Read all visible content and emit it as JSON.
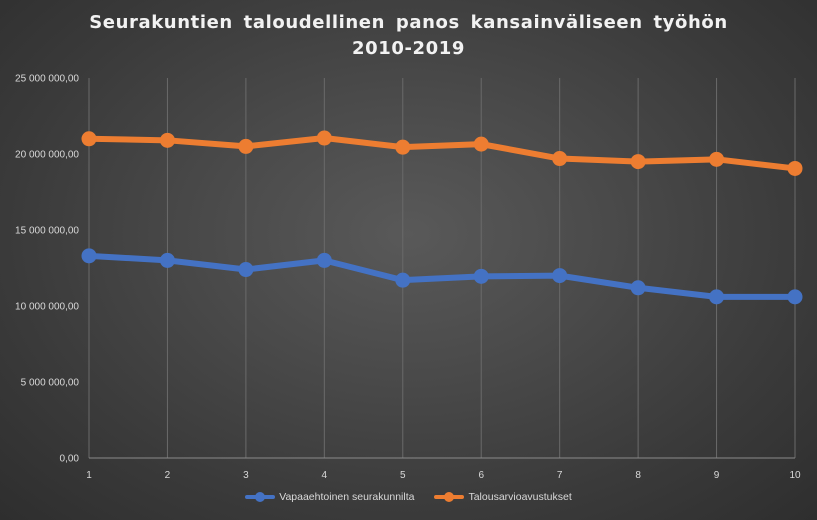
{
  "chart_data": {
    "type": "line",
    "title": [
      "Seurakuntien taloudellinen panos kansainväliseen työhön",
      "2010-2019"
    ],
    "categories": [
      "1",
      "2",
      "3",
      "4",
      "5",
      "6",
      "7",
      "8",
      "9",
      "10"
    ],
    "series": [
      {
        "name": "Vapaaehtoinen seurakunnilta",
        "color": "#4472c4",
        "values": [
          13300000,
          13000000,
          12400000,
          13000000,
          11700000,
          11950000,
          12000000,
          11200000,
          10600000,
          10600000
        ]
      },
      {
        "name": "Talousarvioavustukset",
        "color": "#ed7d31",
        "values": [
          21000000,
          20900000,
          20500000,
          21050000,
          20450000,
          20650000,
          19700000,
          19500000,
          19650000,
          19050000
        ]
      }
    ],
    "ylim": [
      0,
      25000000
    ],
    "yticks": [
      0,
      5000000,
      10000000,
      15000000,
      20000000,
      25000000
    ],
    "ytick_labels": [
      "0,00",
      "5 000 000,00",
      "10 000 000,00",
      "15 000 000,00",
      "20 000 000,00",
      "25 000 000,00"
    ],
    "xlabel": "",
    "ylabel": "",
    "grid": "vertical",
    "legend_position": "bottom"
  }
}
